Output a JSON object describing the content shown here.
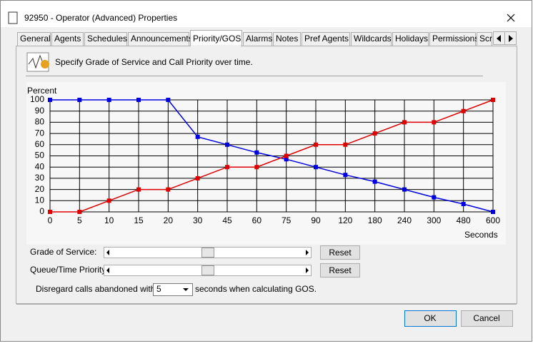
{
  "window": {
    "title": "92950 - Operator (Advanced) Properties"
  },
  "tabs": [
    "General",
    "Agents",
    "Schedules",
    "Announcements",
    "Priority/GOS",
    "Alarms",
    "Notes",
    "Pref Agents",
    "Wildcards",
    "Holidays",
    "Permissions",
    "Scr"
  ],
  "description": "Specify Grade of Service and Call Priority over time.",
  "chart_data": {
    "type": "line",
    "y_label": "Percent",
    "x_label": "Seconds",
    "categories": [
      "0",
      "5",
      "10",
      "15",
      "20",
      "30",
      "45",
      "60",
      "75",
      "90",
      "120",
      "180",
      "240",
      "300",
      "480",
      "600"
    ],
    "series": [
      {
        "name": "Grade of Service:",
        "color": "#0000e0",
        "values": [
          100,
          100,
          100,
          100,
          100,
          67,
          60,
          53,
          47,
          40,
          33,
          27,
          20,
          13,
          7,
          0
        ]
      },
      {
        "name": "Queue/Time Priority:",
        "color": "#e00000",
        "values": [
          0,
          0,
          10,
          20,
          20,
          30,
          40,
          40,
          50,
          60,
          60,
          70,
          80,
          80,
          90,
          100
        ]
      }
    ],
    "ylim": [
      0,
      100
    ],
    "yticks": [
      0,
      10,
      20,
      30,
      40,
      50,
      60,
      70,
      80,
      90,
      100
    ],
    "grid": true
  },
  "controls": {
    "reset": "Reset",
    "abandon_prefix": "Disregard calls abandoned within",
    "abandon_value": "5",
    "abandon_suffix": "seconds when calculating GOS."
  },
  "buttons": {
    "ok": "OK",
    "cancel": "Cancel"
  }
}
